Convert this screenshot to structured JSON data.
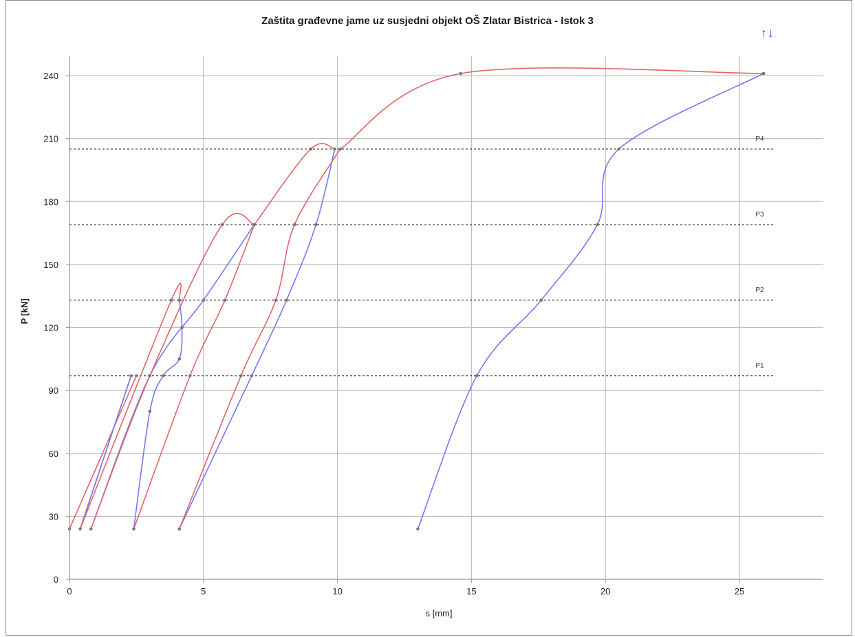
{
  "chart_data": {
    "type": "line",
    "title": "Zaštita građevne jame uz susjedni objekt OŠ Zlatar Bistrica - Istok 3",
    "xlabel": "s [mm]",
    "ylabel": "P [kN]",
    "xlim": [
      0,
      28
    ],
    "ylim": [
      0,
      250
    ],
    "xticks": [
      0,
      5,
      10,
      15,
      20,
      25
    ],
    "yticks": [
      0,
      30,
      60,
      90,
      120,
      150,
      180,
      210,
      240
    ],
    "grid": true,
    "legend": {
      "up_symbol": "↑",
      "down_symbol": "↓",
      "placement": "top-right"
    },
    "colors": {
      "loading": "#e06666",
      "unloading": "#7777ff",
      "marker": "#777777",
      "grid": "#bfbfbf",
      "ref": "#555555"
    },
    "reference_lines": [
      {
        "label": "P1",
        "y": 97
      },
      {
        "label": "P2",
        "y": 133
      },
      {
        "label": "P3",
        "y": 169
      },
      {
        "label": "P4",
        "y": 205
      }
    ],
    "series": [
      {
        "kind": "loading",
        "x": [
          0,
          2.5
        ],
        "y": [
          24,
          97
        ]
      },
      {
        "kind": "loading",
        "x": [
          0.4,
          2.3
        ],
        "y": [
          24,
          97
        ]
      },
      {
        "kind": "unloading",
        "x": [
          0.4,
          2.3
        ],
        "y": [
          24,
          97
        ]
      },
      {
        "kind": "loading",
        "x": [
          0.4,
          3.8,
          4.1
        ],
        "y": [
          24,
          133,
          133
        ]
      },
      {
        "kind": "unloading",
        "x": [
          4.1,
          4.2,
          4.1,
          3.5,
          3.0,
          2.4
        ],
        "y": [
          133,
          120,
          105,
          97,
          80,
          24
        ]
      },
      {
        "kind": "unloading",
        "x": [
          0.8,
          3.0,
          5.0,
          6.9
        ],
        "y": [
          24,
          97,
          133,
          169
        ]
      },
      {
        "kind": "loading",
        "x": [
          0.8,
          3.0,
          5.7,
          6.9
        ],
        "y": [
          24,
          97,
          169,
          169
        ]
      },
      {
        "kind": "loading",
        "x": [
          2.4,
          4.5,
          5.8,
          6.9
        ],
        "y": [
          24,
          97,
          133,
          169
        ]
      },
      {
        "kind": "loading",
        "x": [
          6.9,
          9.0,
          9.9
        ],
        "y": [
          169,
          205,
          205
        ]
      },
      {
        "kind": "unloading",
        "x": [
          9.9,
          9.2,
          8.1,
          6.8,
          4.1
        ],
        "y": [
          205,
          169,
          133,
          97,
          24
        ]
      },
      {
        "kind": "loading",
        "x": [
          4.1,
          6.4,
          7.7,
          8.4,
          10.1
        ],
        "y": [
          24,
          97,
          133,
          169,
          205
        ]
      },
      {
        "kind": "loading",
        "x": [
          10.1,
          14.6,
          25.9
        ],
        "y": [
          205,
          241,
          241
        ]
      },
      {
        "kind": "unloading",
        "x": [
          25.9,
          20.5,
          19.7,
          17.6,
          15.2,
          13.0
        ],
        "y": [
          241,
          205,
          169,
          133,
          97,
          24
        ]
      }
    ]
  }
}
